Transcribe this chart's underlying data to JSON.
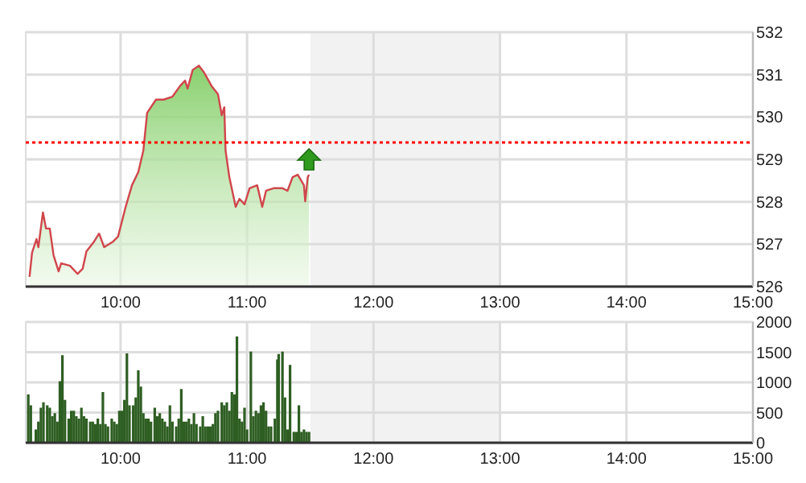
{
  "chart_data": [
    {
      "type": "area",
      "x": [
        9.28,
        9.3,
        9.335,
        9.35,
        9.386,
        9.41,
        9.44,
        9.47,
        9.51,
        9.53,
        9.6,
        9.66,
        9.7,
        9.73,
        9.79,
        9.83,
        9.87,
        9.94,
        9.98,
        10.04,
        10.09,
        10.14,
        10.18,
        10.21,
        10.28,
        10.34,
        10.41,
        10.47,
        10.51,
        10.53,
        10.57,
        10.62,
        10.66,
        10.72,
        10.77,
        10.8,
        10.82,
        10.83,
        10.86,
        10.91,
        10.94,
        10.98,
        11.02,
        11.08,
        11.12,
        11.15,
        11.21,
        11.28,
        11.32,
        11.36,
        11.4,
        11.45,
        11.46,
        11.48,
        11.49
      ],
      "series": [
        {
          "color": "#d0464b",
          "values": [
            526.23,
            526.8,
            527.12,
            526.93,
            527.75,
            527.37,
            527.37,
            526.74,
            526.36,
            526.55,
            526.49,
            526.3,
            526.42,
            526.83,
            527.06,
            527.25,
            526.93,
            527.06,
            527.18,
            527.88,
            528.39,
            528.7,
            529.21,
            530.1,
            530.41,
            530.41,
            530.48,
            530.73,
            530.86,
            530.67,
            531.11,
            531.21,
            531.05,
            530.73,
            530.54,
            530.04,
            530.23,
            529.21,
            528.58,
            527.88,
            528.07,
            527.94,
            528.32,
            528.39,
            527.88,
            528.26,
            528.32,
            528.32,
            528.26,
            528.58,
            528.64,
            528.39,
            528.01,
            528.58,
            528.64
          ]
        }
      ],
      "xlim": [
        9.25,
        15
      ],
      "ylim": [
        526,
        532
      ],
      "xticks": [
        {
          "value": 10,
          "label": "10:00"
        },
        {
          "value": 11,
          "label": "11:00"
        },
        {
          "value": 12,
          "label": "12:00"
        },
        {
          "value": 13,
          "label": "13:00"
        },
        {
          "value": 14,
          "label": "14:00"
        },
        {
          "value": 15,
          "label": "15:00"
        }
      ],
      "yticks": [
        526,
        527,
        528,
        529,
        530,
        531,
        532
      ],
      "grid": true,
      "bands": [
        {
          "axis": "x",
          "from": 11.5,
          "to": 13,
          "color": "#f2f2f2"
        }
      ],
      "ref_lines": [
        {
          "axis": "y",
          "value": 529.4,
          "color": "#ff0000",
          "line_style": "dotted"
        }
      ]
    },
    {
      "type": "bar",
      "x": [
        9.27,
        9.29,
        9.33,
        9.35,
        9.37,
        9.39,
        9.42,
        9.44,
        9.46,
        9.48,
        9.5,
        9.52,
        9.54,
        9.56,
        9.59,
        9.61,
        9.63,
        9.65,
        9.67,
        9.69,
        9.71,
        9.73,
        9.76,
        9.78,
        9.8,
        9.82,
        9.84,
        9.86,
        9.88,
        9.9,
        9.93,
        9.95,
        9.97,
        9.99,
        10.01,
        10.03,
        10.05,
        10.07,
        10.1,
        10.12,
        10.14,
        10.16,
        10.18,
        10.2,
        10.22,
        10.24,
        10.27,
        10.29,
        10.31,
        10.33,
        10.35,
        10.37,
        10.39,
        10.41,
        10.44,
        10.46,
        10.48,
        10.5,
        10.52,
        10.54,
        10.56,
        10.58,
        10.6,
        10.63,
        10.65,
        10.67,
        10.69,
        10.71,
        10.73,
        10.75,
        10.77,
        10.8,
        10.82,
        10.84,
        10.86,
        10.88,
        10.9,
        10.92,
        10.94,
        10.96,
        10.98,
        11,
        11.03,
        11.05,
        11.07,
        11.09,
        11.11,
        11.13,
        11.15,
        11.17,
        11.19,
        11.22,
        11.24,
        11.25,
        11.28,
        11.3,
        11.32,
        11.34,
        11.37,
        11.39,
        11.41,
        11.43,
        11.45,
        11.47,
        11.49
      ],
      "series": [
        {
          "color": "#2e5e22",
          "values": [
            800,
            620,
            220,
            350,
            580,
            670,
            620,
            580,
            440,
            490,
            350,
            1020,
            1450,
            710,
            400,
            530,
            530,
            440,
            400,
            580,
            440,
            400,
            350,
            350,
            310,
            400,
            310,
            840,
            310,
            270,
            400,
            350,
            310,
            530,
            530,
            710,
            1480,
            620,
            620,
            750,
            1200,
            930,
            490,
            400,
            400,
            350,
            580,
            440,
            490,
            400,
            350,
            270,
            620,
            350,
            270,
            400,
            890,
            350,
            350,
            400,
            310,
            490,
            310,
            270,
            440,
            270,
            270,
            270,
            310,
            490,
            530,
            670,
            620,
            670,
            530,
            840,
            800,
            1760,
            400,
            350,
            580,
            220,
            1510,
            440,
            530,
            490,
            620,
            670,
            530,
            270,
            270,
            400,
            1380,
            1470,
            1510,
            750,
            220,
            1290,
            180,
            180,
            620,
            180,
            220,
            180,
            180
          ]
        }
      ],
      "xlim": [
        9.25,
        15
      ],
      "ylim": [
        0,
        2000
      ],
      "xticks": [
        {
          "value": 10,
          "label": "10:00"
        },
        {
          "value": 11,
          "label": "11:00"
        },
        {
          "value": 12,
          "label": "12:00"
        },
        {
          "value": 13,
          "label": "13:00"
        },
        {
          "value": 14,
          "label": "14:00"
        },
        {
          "value": 15,
          "label": "15:00"
        }
      ],
      "yticks": [
        0,
        500,
        1000,
        1500,
        2000
      ],
      "grid": true,
      "bands": [
        {
          "axis": "x",
          "from": 11.5,
          "to": 13,
          "color": "#f2f2f2"
        }
      ]
    }
  ]
}
